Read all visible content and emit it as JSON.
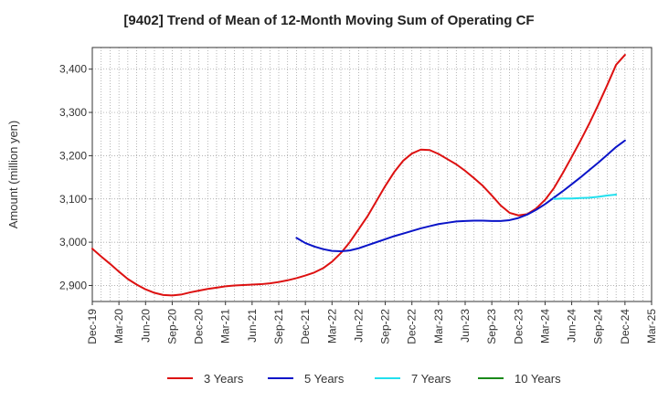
{
  "chart_data": {
    "type": "line",
    "title": "[9402]  Trend of Mean of 12-Month Moving Sum of Operating CF",
    "xlabel": "",
    "ylabel": "Amount (million yen)",
    "ylim": [
      2863,
      3450
    ],
    "yticks": [
      2900,
      3000,
      3100,
      3200,
      3300,
      3400
    ],
    "ytick_labels": [
      "2,900",
      "3,000",
      "3,100",
      "3,200",
      "3,300",
      "3,400"
    ],
    "xtick_labels": [
      "Dec-19",
      "Mar-20",
      "Jun-20",
      "Sep-20",
      "Dec-20",
      "Mar-21",
      "Jun-21",
      "Sep-21",
      "Dec-21",
      "Mar-22",
      "Jun-22",
      "Sep-22",
      "Dec-22",
      "Mar-23",
      "Jun-23",
      "Sep-23",
      "Dec-23",
      "Mar-24",
      "Jun-24",
      "Sep-24",
      "Dec-24",
      "Mar-25"
    ],
    "grid": true,
    "legend_position": "bottom",
    "series": [
      {
        "name": "3 Years",
        "color": "#dd1111",
        "start_month_index": 0,
        "values": [
          2985,
          2967,
          2950,
          2932,
          2915,
          2902,
          2891,
          2883,
          2878,
          2877,
          2879,
          2884,
          2888,
          2892,
          2895,
          2898,
          2900,
          2901,
          2902,
          2903,
          2905,
          2908,
          2912,
          2917,
          2923,
          2930,
          2940,
          2955,
          2975,
          3000,
          3030,
          3060,
          3095,
          3130,
          3162,
          3188,
          3205,
          3214,
          3213,
          3204,
          3192,
          3180,
          3165,
          3148,
          3130,
          3108,
          3085,
          3068,
          3062,
          3065,
          3078,
          3098,
          3125,
          3160,
          3197,
          3235,
          3275,
          3318,
          3363,
          3410,
          3433
        ]
      },
      {
        "name": "5 Years",
        "color": "#0a14c8",
        "start_month_index": 23,
        "values": [
          3010,
          2998,
          2990,
          2984,
          2980,
          2979,
          2981,
          2986,
          2993,
          3000,
          3007,
          3014,
          3020,
          3026,
          3032,
          3037,
          3042,
          3045,
          3048,
          3049,
          3050,
          3050,
          3049,
          3049,
          3051,
          3056,
          3064,
          3075,
          3088,
          3103,
          3118,
          3134,
          3150,
          3167,
          3184,
          3202,
          3220,
          3235
        ]
      },
      {
        "name": "7 Years",
        "color": "#22e0ee",
        "start_month_index": 52,
        "values": [
          3100,
          3101,
          3101,
          3102,
          3103,
          3105,
          3108,
          3110
        ]
      },
      {
        "name": "10 Years",
        "color": "#1a8a1a",
        "start_month_index": 0,
        "values": []
      }
    ]
  }
}
